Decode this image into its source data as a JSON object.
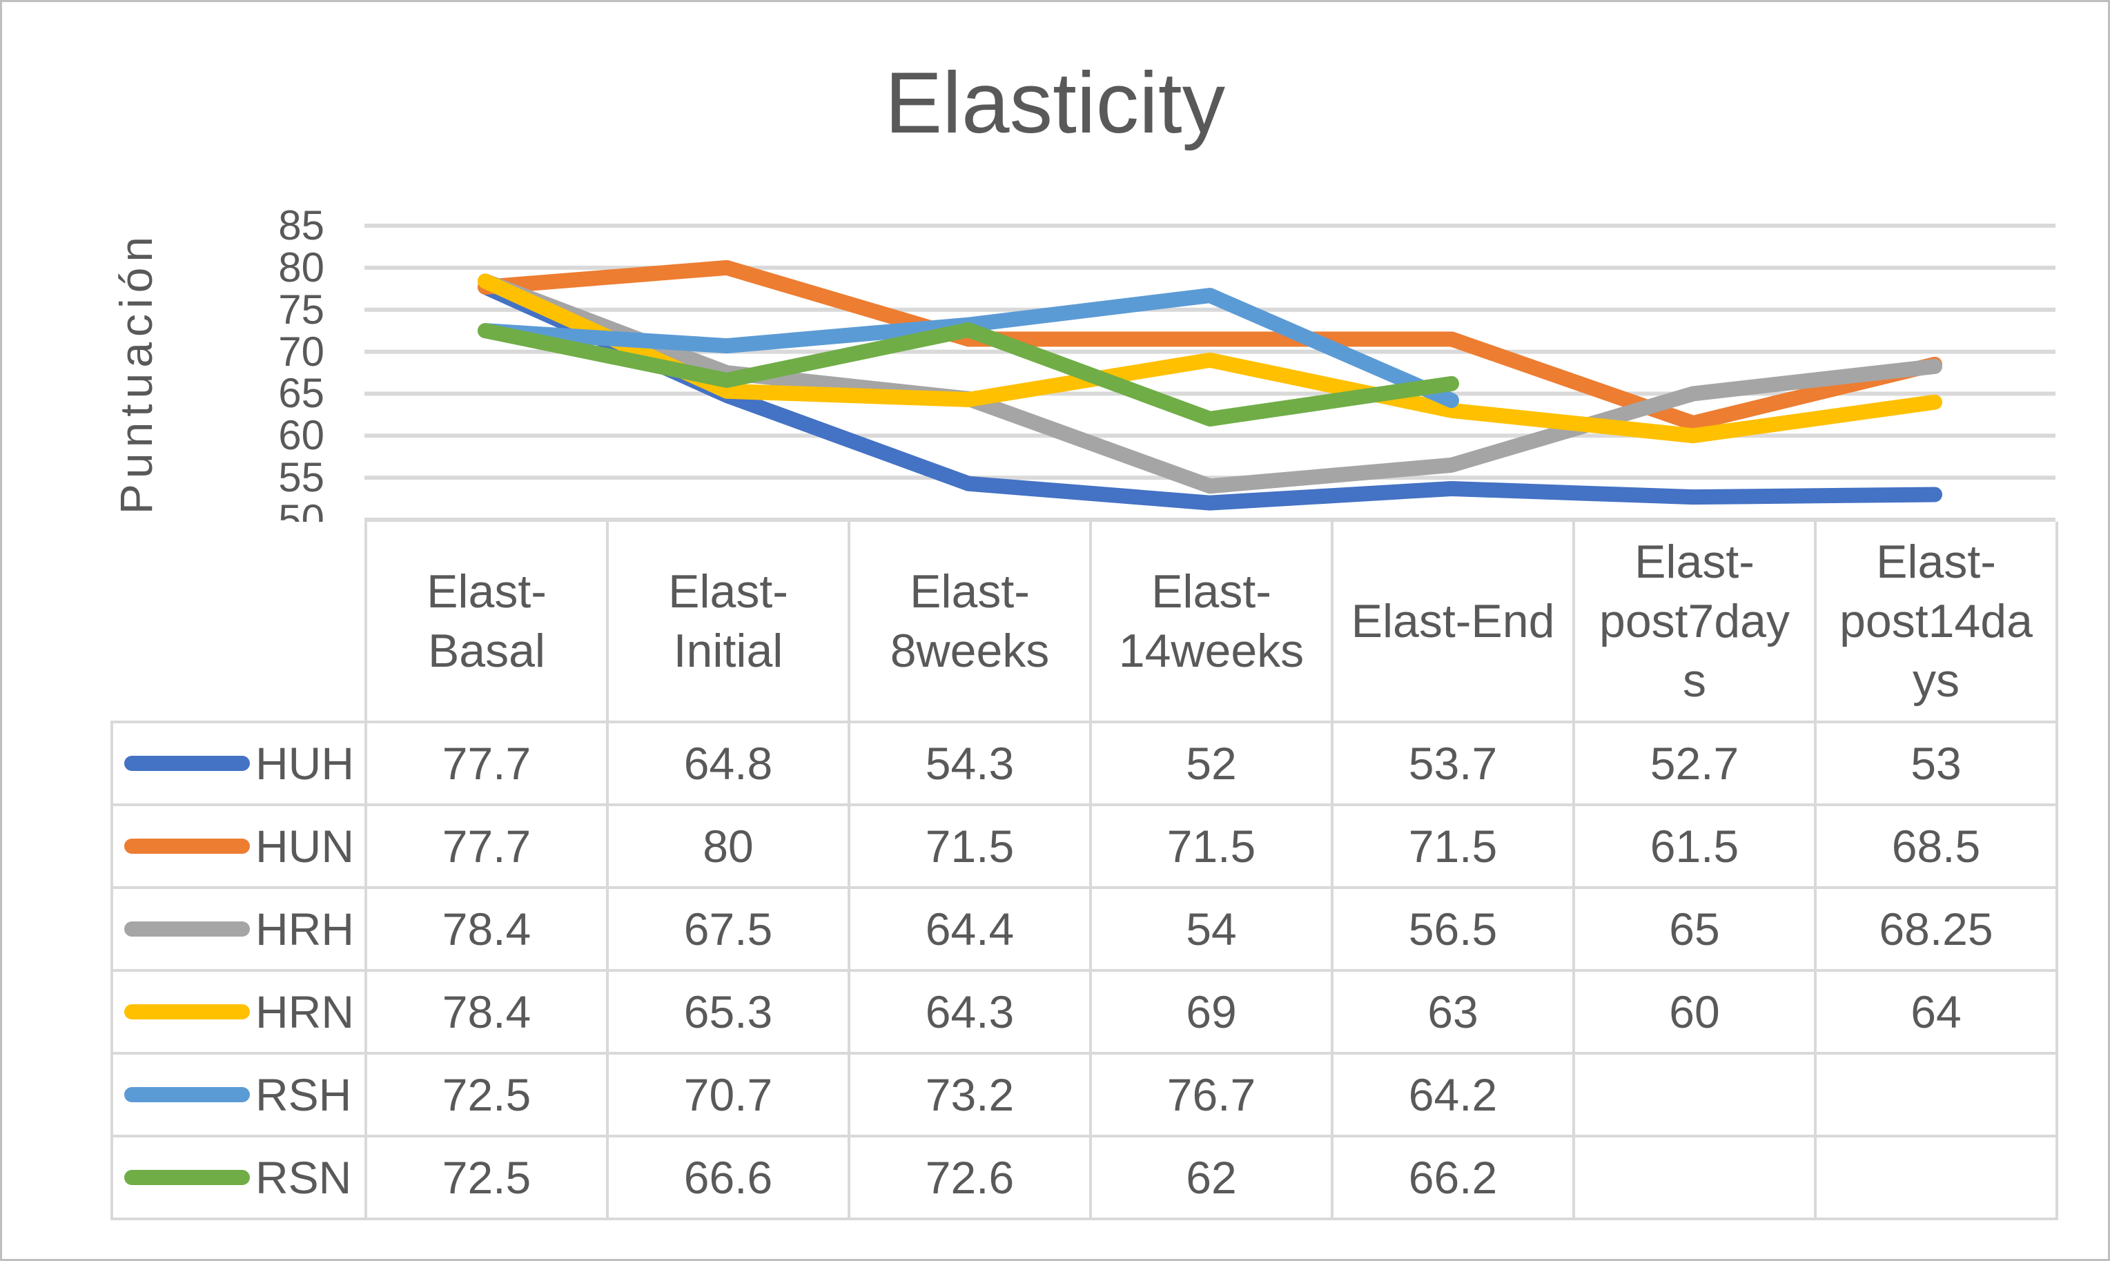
{
  "chart_data": {
    "type": "line",
    "title": "Elasticity",
    "xlabel": "",
    "ylabel": "Puntuación",
    "ylim": [
      50,
      85
    ],
    "yticks": [
      85,
      80,
      75,
      70,
      65,
      60,
      55,
      50
    ],
    "grid": true,
    "grid_color": "#D9D9D9",
    "legend_position": "data-table-left-column",
    "categories": [
      "Elast-Basal",
      "Elast-Initial",
      "Elast-8weeks",
      "Elast-14weeks",
      "Elast-End",
      "Elast-post7days",
      "Elast-post14days"
    ],
    "series": [
      {
        "name": "HUH",
        "color": "#4472C4",
        "values": [
          77.7,
          64.8,
          54.3,
          52,
          53.7,
          52.7,
          53
        ]
      },
      {
        "name": "HUN",
        "color": "#ED7D31",
        "values": [
          77.7,
          80,
          71.5,
          71.5,
          71.5,
          61.5,
          68.5
        ]
      },
      {
        "name": "HRH",
        "color": "#A5A5A5",
        "values": [
          78.4,
          67.5,
          64.4,
          54,
          56.5,
          65,
          68.25
        ]
      },
      {
        "name": "HRN",
        "color": "#FFC000",
        "values": [
          78.4,
          65.3,
          64.3,
          69,
          63,
          60,
          64
        ]
      },
      {
        "name": "RSH",
        "color": "#5B9BD5",
        "values": [
          72.5,
          70.7,
          73.2,
          76.7,
          64.2,
          null,
          null
        ]
      },
      {
        "name": "RSN",
        "color": "#70AD47",
        "values": [
          72.5,
          66.6,
          72.6,
          62,
          66.2,
          null,
          null
        ]
      }
    ],
    "text_color": "#595959"
  }
}
